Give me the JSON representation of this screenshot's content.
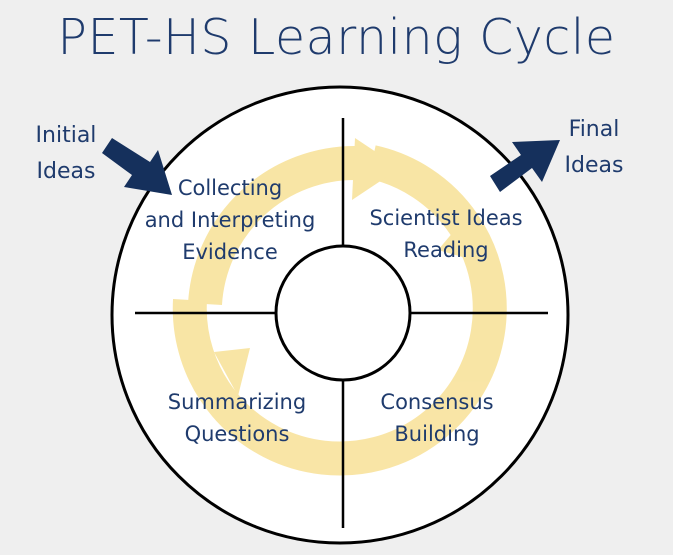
{
  "title": "PET-HS Learning Cycle",
  "inputs": {
    "initial": "Initial\nIdeas",
    "final": "Final\nIdeas"
  },
  "quadrants": {
    "top_left": "Collecting\nand Interpreting\nEvidence",
    "top_right": "Scientist Ideas\nReading",
    "bottom_left": "Summarizing\nQuestions",
    "bottom_right": "Consensus\nBuilding"
  },
  "icons": {
    "cycle": "cycle-arrows-icon",
    "in_arrow": "arrow-in-icon",
    "out_arrow": "arrow-out-icon"
  },
  "colors": {
    "text": "#1f3b6d",
    "arrow": "#15305c",
    "cycle": "#f5d46a",
    "background": "#efefef"
  }
}
